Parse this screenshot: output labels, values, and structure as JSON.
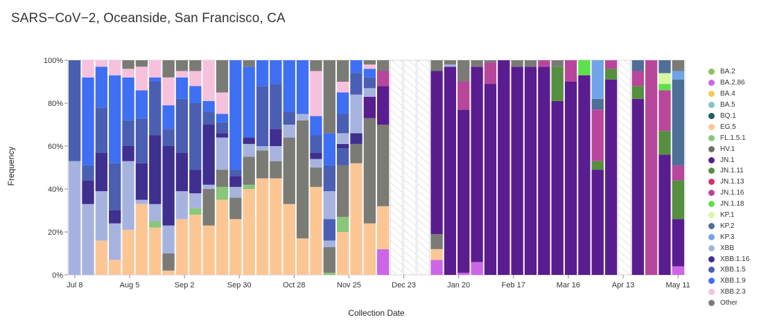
{
  "chart_data": {
    "type": "stacked-bar",
    "title": "SARS−CoV−2, Oceanside, San Francisco, CA",
    "xlabel": "Collection Date",
    "ylabel": "Frequency",
    "ylim": [
      0,
      100
    ],
    "y_ticks": [
      "0%",
      "20%",
      "40%",
      "60%",
      "80%",
      "100%"
    ],
    "x_ticks": [
      {
        "label": "Jul 8",
        "index": 0
      },
      {
        "label": "Aug 5",
        "index": 4
      },
      {
        "label": "Sep 2",
        "index": 8
      },
      {
        "label": "Sep 30",
        "index": 12
      },
      {
        "label": "Oct 28",
        "index": 16
      },
      {
        "label": "Nov 25",
        "index": 20
      },
      {
        "label": "Dec 23",
        "index": 24
      },
      {
        "label": "Jan 20",
        "index": 28
      },
      {
        "label": "Feb 17",
        "index": 32
      },
      {
        "label": "Mar 16",
        "index": 36
      },
      {
        "label": "Apr 13",
        "index": 40
      },
      {
        "label": "May 11",
        "index": 44
      }
    ],
    "bars_per_week": 2,
    "weeks": 45,
    "legend": [
      {
        "name": "BA.2",
        "color": "#8fbf5f"
      },
      {
        "name": "BA.2.86",
        "color": "#cc66e6"
      },
      {
        "name": "BA.4",
        "color": "#f5cc55"
      },
      {
        "name": "BA.5",
        "color": "#7fc7c0"
      },
      {
        "name": "BQ.1",
        "color": "#1d5f5f"
      },
      {
        "name": "EG.5",
        "color": "#fcc694"
      },
      {
        "name": "FL.1.5.1",
        "color": "#8ac77a"
      },
      {
        "name": "HV.1",
        "color": "#6f6f60"
      },
      {
        "name": "JN.1",
        "color": "#5a1d8f"
      },
      {
        "name": "JN.1.11",
        "color": "#558f3f"
      },
      {
        "name": "JN.1.13",
        "color": "#d2306e"
      },
      {
        "name": "JN.1.16",
        "color": "#b8479c"
      },
      {
        "name": "JN.1.18",
        "color": "#5ee04a"
      },
      {
        "name": "KP.1",
        "color": "#d7f7a3"
      },
      {
        "name": "KP.2",
        "color": "#4d6f98"
      },
      {
        "name": "KP.3",
        "color": "#70a4e6"
      },
      {
        "name": "XBB",
        "color": "#a7b3df"
      },
      {
        "name": "XBB.1.16",
        "color": "#3f2f8f"
      },
      {
        "name": "XBB.1.5",
        "color": "#4a5fb2"
      },
      {
        "name": "XBB.1.9",
        "color": "#3f6ff2"
      },
      {
        "name": "XBB.2.3",
        "color": "#f5c1dd"
      },
      {
        "name": "Other",
        "color": "#7b7b76"
      }
    ],
    "bars": [
      {
        "missing": false,
        "segments": [
          [
            "XBB",
            53
          ],
          [
            "XBB.1.5",
            47
          ]
        ]
      },
      {
        "missing": false,
        "segments": [
          [
            "XBB",
            33
          ],
          [
            "XBB.1.16",
            11
          ],
          [
            "XBB.1.5",
            7
          ],
          [
            "XBB.1.9",
            41
          ],
          [
            "XBB.2.3",
            8
          ]
        ]
      },
      {
        "missing": false,
        "segments": [
          [
            "EG.5",
            16
          ],
          [
            "XBB",
            23
          ],
          [
            "XBB.1.16",
            18
          ],
          [
            "XBB.1.5",
            21
          ],
          [
            "XBB.1.9",
            19
          ],
          [
            "XBB.2.3",
            3
          ]
        ]
      },
      {
        "missing": false,
        "segments": [
          [
            "EG.5",
            7
          ],
          [
            "XBB",
            17
          ],
          [
            "XBB.1.16",
            6
          ],
          [
            "XBB.1.5",
            22
          ],
          [
            "XBB.1.9",
            41
          ],
          [
            "XBB.2.3",
            7
          ]
        ]
      },
      {
        "missing": false,
        "segments": [
          [
            "EG.5",
            21
          ],
          [
            "XBB",
            32
          ],
          [
            "XBB.1.16",
            7
          ],
          [
            "XBB.1.5",
            12
          ],
          [
            "XBB.1.9",
            20
          ],
          [
            "XBB.2.3",
            4
          ],
          [
            "Other",
            4
          ]
        ]
      },
      {
        "missing": false,
        "segments": [
          [
            "EG.5",
            33
          ],
          [
            "XBB",
            2
          ],
          [
            "XBB.1.16",
            17
          ],
          [
            "XBB.1.5",
            21
          ],
          [
            "XBB.1.9",
            13
          ],
          [
            "XBB.2.3",
            11
          ],
          [
            "Other",
            3
          ]
        ]
      },
      {
        "missing": false,
        "segments": [
          [
            "EG.5",
            22
          ],
          [
            "FL.1.5.1",
            3
          ],
          [
            "XBB",
            8
          ],
          [
            "XBB.1.16",
            32
          ],
          [
            "XBB.1.5",
            25
          ],
          [
            "XBB.1.9",
            2
          ],
          [
            "XBB.2.3",
            8
          ]
        ]
      },
      {
        "missing": false,
        "segments": [
          [
            "EG.5",
            2
          ],
          [
            "Other",
            8
          ],
          [
            "XBB",
            13
          ],
          [
            "XBB.1.16",
            37
          ],
          [
            "XBB.1.5",
            8
          ],
          [
            "XBB.1.9",
            11
          ],
          [
            "XBB.2.3",
            13
          ],
          [
            "Other",
            8
          ]
        ]
      },
      {
        "missing": false,
        "segments": [
          [
            "EG.5",
            26
          ],
          [
            "XBB",
            13
          ],
          [
            "XBB.1.16",
            18
          ],
          [
            "XBB.1.5",
            25
          ],
          [
            "XBB.1.9",
            10
          ],
          [
            "XBB.2.3",
            3
          ],
          [
            "Other",
            5
          ]
        ]
      },
      {
        "missing": false,
        "segments": [
          [
            "EG.5",
            28
          ],
          [
            "FL.1.5.1",
            3
          ],
          [
            "XBB",
            7
          ],
          [
            "XBB.1.16",
            11
          ],
          [
            "XBB.1.5",
            31
          ],
          [
            "XBB.1.9",
            8
          ],
          [
            "XBB.2.3",
            7
          ],
          [
            "Other",
            5
          ]
        ]
      },
      {
        "missing": false,
        "segments": [
          [
            "EG.5",
            23
          ],
          [
            "Other",
            17
          ],
          [
            "XBB",
            2
          ],
          [
            "XBB.1.16",
            28
          ],
          [
            "XBB.1.5",
            6
          ],
          [
            "XBB.1.9",
            5
          ],
          [
            "XBB.2.3",
            19
          ]
        ]
      },
      {
        "missing": false,
        "segments": [
          [
            "EG.5",
            35
          ],
          [
            "FL.1.5.1",
            6
          ],
          [
            "Other",
            8
          ],
          [
            "XBB",
            15
          ],
          [
            "XBB.1.16",
            2
          ],
          [
            "XBB.1.5",
            5
          ],
          [
            "XBB.1.9",
            4
          ],
          [
            "XBB.2.3",
            10
          ],
          [
            "Other",
            15
          ]
        ]
      },
      {
        "missing": false,
        "segments": [
          [
            "EG.5",
            26
          ],
          [
            "Other",
            10
          ],
          [
            "XBB",
            5
          ],
          [
            "XBB.1.16",
            5
          ],
          [
            "XBB.1.5",
            3
          ],
          [
            "XBB.1.9",
            51
          ]
        ]
      },
      {
        "missing": false,
        "segments": [
          [
            "EG.5",
            40
          ],
          [
            "FL.1.5.1",
            2
          ],
          [
            "Other",
            13
          ],
          [
            "XBB",
            6
          ],
          [
            "XBB.1.16",
            3
          ],
          [
            "XBB.1.9",
            33
          ],
          [
            "Other",
            3
          ]
        ]
      },
      {
        "missing": false,
        "segments": [
          [
            "EG.5",
            45
          ],
          [
            "Other",
            13
          ],
          [
            "XBB",
            2
          ],
          [
            "XBB.1.5",
            28
          ],
          [
            "XBB.1.9",
            12
          ]
        ]
      },
      {
        "missing": false,
        "segments": [
          [
            "EG.5",
            45
          ],
          [
            "Other",
            8
          ],
          [
            "XBB",
            7
          ],
          [
            "XBB.1.16",
            8
          ],
          [
            "XBB.1.5",
            21
          ],
          [
            "XBB.1.9",
            11
          ]
        ]
      },
      {
        "missing": false,
        "segments": [
          [
            "EG.5",
            33
          ],
          [
            "Other",
            31
          ],
          [
            "XBB",
            6
          ],
          [
            "XBB.1.5",
            6
          ],
          [
            "XBB.1.9",
            24
          ]
        ]
      },
      {
        "missing": false,
        "segments": [
          [
            "EG.5",
            17
          ],
          [
            "Other",
            55
          ],
          [
            "XBB",
            3
          ],
          [
            "XBB.1.9",
            25
          ]
        ]
      },
      {
        "missing": false,
        "segments": [
          [
            "EG.5",
            41
          ],
          [
            "Other",
            9
          ],
          [
            "XBB",
            4
          ],
          [
            "XBB.1.16",
            3
          ],
          [
            "XBB.1.5",
            8
          ],
          [
            "XBB.1.9",
            9
          ],
          [
            "XBB.2.3",
            21
          ],
          [
            "Other",
            5
          ]
        ]
      },
      {
        "missing": false,
        "segments": [
          [
            "FL.1.5.1",
            1
          ],
          [
            "Other",
            12
          ],
          [
            "XBB",
            3
          ],
          [
            "XBB.1.5",
            10
          ],
          [
            "XBB",
            13
          ],
          [
            "XBB.1.5",
            12
          ],
          [
            "XBB.1.9",
            15
          ],
          [
            "Other",
            34
          ]
        ]
      },
      {
        "missing": false,
        "segments": [
          [
            "EG.5",
            20
          ],
          [
            "FL.1.5.1",
            7
          ],
          [
            "Other",
            24
          ],
          [
            "XBB.1.5",
            8
          ],
          [
            "XBB.1.16",
            2
          ],
          [
            "XBB",
            5
          ],
          [
            "XBB.1.5",
            9
          ],
          [
            "XBB.1.9",
            10
          ],
          [
            "XBB.2.3",
            5
          ],
          [
            "Other",
            10
          ]
        ]
      },
      {
        "missing": false,
        "segments": [
          [
            "EG.5",
            52
          ],
          [
            "Other",
            9
          ],
          [
            "XBB.1.16",
            5
          ],
          [
            "XBB",
            18
          ],
          [
            "XBB.1.5",
            10
          ],
          [
            "XBB.1.9",
            6
          ]
        ]
      },
      {
        "missing": false,
        "segments": [
          [
            "EG.5",
            24
          ],
          [
            "Other",
            49
          ],
          [
            "JN.1",
            10
          ],
          [
            "XBB",
            4
          ],
          [
            "XBB.1.5",
            5
          ],
          [
            "XBB.1.9",
            4
          ],
          [
            "XBB.2.3",
            2
          ],
          [
            "Other",
            2
          ]
        ]
      },
      {
        "missing": false,
        "segments": [
          [
            "BA.2.86",
            12
          ],
          [
            "EG.5",
            20
          ],
          [
            "Other",
            38
          ],
          [
            "JN.1",
            18
          ],
          [
            "JN.1.16",
            7
          ],
          [
            "Other",
            5
          ]
        ]
      },
      {
        "missing": true,
        "segments": []
      },
      {
        "missing": true,
        "segments": []
      },
      {
        "missing": true,
        "segments": []
      },
      {
        "missing": false,
        "segments": [
          [
            "BA.2.86",
            7
          ],
          [
            "EG.5",
            5
          ],
          [
            "Other",
            7
          ],
          [
            "JN.1",
            76
          ],
          [
            "Other",
            5
          ]
        ]
      },
      {
        "missing": false,
        "segments": [
          [
            "JN.1",
            97
          ],
          [
            "XBB",
            1
          ],
          [
            "Other",
            2
          ]
        ]
      },
      {
        "missing": false,
        "segments": [
          [
            "BA.2.86",
            1
          ],
          [
            "JN.1",
            76
          ],
          [
            "JN.1.16",
            13
          ],
          [
            "Other",
            10
          ]
        ]
      },
      {
        "missing": false,
        "segments": [
          [
            "BA.2.86",
            6
          ],
          [
            "JN.1",
            91
          ],
          [
            "Other",
            3
          ]
        ]
      },
      {
        "missing": false,
        "segments": [
          [
            "JN.1",
            89
          ],
          [
            "JN.1.16",
            10
          ],
          [
            "Other",
            1
          ]
        ]
      },
      {
        "missing": false,
        "segments": [
          [
            "JN.1",
            100
          ]
        ]
      },
      {
        "missing": false,
        "segments": [
          [
            "JN.1",
            97
          ],
          [
            "Other",
            3
          ]
        ]
      },
      {
        "missing": false,
        "segments": [
          [
            "JN.1",
            97
          ],
          [
            "Other",
            3
          ]
        ]
      },
      {
        "missing": false,
        "segments": [
          [
            "JN.1",
            97
          ],
          [
            "JN.1.16",
            3
          ]
        ]
      },
      {
        "missing": false,
        "segments": [
          [
            "JN.1",
            81
          ],
          [
            "JN.1.11",
            16
          ],
          [
            "Other",
            3
          ]
        ]
      },
      {
        "missing": false,
        "segments": [
          [
            "JN.1",
            90
          ],
          [
            "JN.1.16",
            10
          ]
        ]
      },
      {
        "missing": false,
        "segments": [
          [
            "JN.1",
            93
          ],
          [
            "JN.1.18",
            7
          ]
        ]
      },
      {
        "missing": false,
        "segments": [
          [
            "JN.1",
            49
          ],
          [
            "JN.1.11",
            4
          ],
          [
            "JN.1.16",
            24
          ],
          [
            "KP.2",
            5
          ],
          [
            "KP.3",
            18
          ]
        ]
      },
      {
        "missing": false,
        "segments": [
          [
            "JN.1",
            91
          ],
          [
            "JN.1.11",
            5
          ],
          [
            "JN.1.16",
            4
          ]
        ]
      },
      {
        "missing": true,
        "segments": []
      },
      {
        "missing": false,
        "segments": [
          [
            "JN.1",
            82
          ],
          [
            "JN.1.11",
            6
          ],
          [
            "JN.1.16",
            7
          ],
          [
            "KP.2",
            5
          ]
        ]
      },
      {
        "missing": false,
        "segments": [
          [
            "JN.1.16",
            100
          ]
        ]
      },
      {
        "missing": false,
        "segments": [
          [
            "JN.1",
            56
          ],
          [
            "JN.1.11",
            11
          ],
          [
            "JN.1.16",
            19
          ],
          [
            "JN.1.18",
            3
          ],
          [
            "KP.1",
            5
          ],
          [
            "KP.2",
            6
          ]
        ]
      },
      {
        "missing": false,
        "segments": [
          [
            "BA.2.86",
            4
          ],
          [
            "JN.1",
            22
          ],
          [
            "JN.1.11",
            18
          ],
          [
            "JN.1.16",
            7
          ],
          [
            "KP.2",
            40
          ],
          [
            "KP.3",
            4
          ],
          [
            "Other",
            5
          ]
        ]
      }
    ]
  }
}
